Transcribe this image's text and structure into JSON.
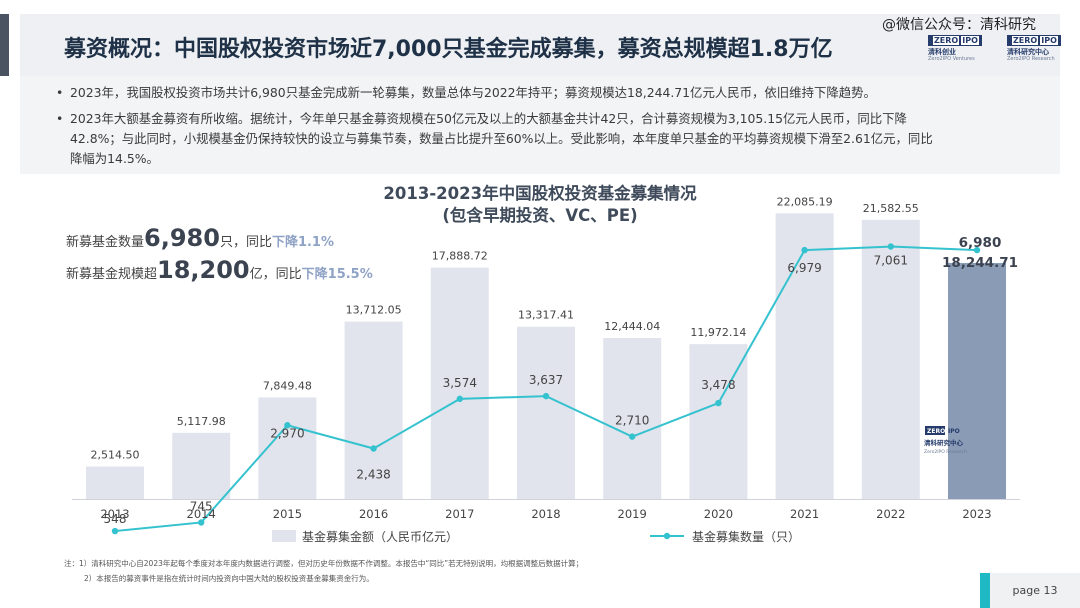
{
  "header": {
    "title": "募资概况：中国股权投资市场近7,000只基金完成募集，募资总规模超1.8万亿",
    "watermark": "@微信公众号：清科研究",
    "logo1": {
      "box": "ZERO",
      "box2": "IPO",
      "cn": "清科创业",
      "en": "Zero2IPO Ventures"
    },
    "logo2": {
      "box": "ZERO",
      "box2": "IPO",
      "cn": "清科研究中心",
      "en": "Zero2IPO Research"
    }
  },
  "bullets": {
    "b1": "2023年，我国股权投资市场共计6,980只基金完成新一轮募集，数量总体与2022年持平；募资规模达18,244.71亿元人民币，依旧维持下降趋势。",
    "b2_l1": "2023年大额基金募资有所收缩。据统计，今年单只基金募资规模在50亿元及以上的大额基金共计42只，合计募资规模为3,105.15亿元人民币，同比下降",
    "b2_l2": "42.8%；与此同时，小规模基金仍保持较快的设立与募集节奏，数量占比提升至60%以上。受此影响，本年度单只基金的平均募资规模下滑至2.61亿元，同比",
    "b2_l3": "降幅为14.5%。"
  },
  "highlight": {
    "count_pre": "新募基金数量",
    "count_num": "6,980",
    "count_unit": "只，同比",
    "count_change": "下降1.1%",
    "size_pre": "新募基金规模超",
    "size_num": "18,200",
    "size_unit": "亿，同比",
    "size_change": "下降15.5%"
  },
  "chart_data": {
    "type": "bar",
    "title": "2013-2023年中国股权投资基金募集情况",
    "subtitle": "(包含早期投资、VC、PE)",
    "categories": [
      "2013",
      "2014",
      "2015",
      "2016",
      "2017",
      "2018",
      "2019",
      "2020",
      "2021",
      "2022",
      "2023"
    ],
    "series": [
      {
        "name": "基金募集金额（人民币亿元）",
        "type": "bar",
        "values": [
          2514.5,
          5117.98,
          7849.48,
          13712.05,
          17888.72,
          13317.41,
          12444.04,
          11972.14,
          22085.19,
          21582.55,
          18244.71
        ],
        "labels": [
          "2,514.50",
          "5,117.98",
          "7,849.48",
          "13,712.05",
          "17,888.72",
          "13,317.41",
          "12,444.04",
          "11,972.14",
          "22,085.19",
          "21,582.55",
          "18,244.71"
        ]
      },
      {
        "name": "基金募集数量（只）",
        "type": "line",
        "values": [
          548,
          745,
          2970,
          2438,
          3574,
          3637,
          2710,
          3478,
          6979,
          7061,
          6980
        ],
        "labels": [
          "548",
          "745",
          "2,970",
          "2,438",
          "3,574",
          "3,637",
          "2,710",
          "3,478",
          "6,979",
          "7,061",
          "6,980"
        ]
      }
    ],
    "bar_ylim": [
      0,
      23500
    ],
    "line_ylim": [
      0,
      7600
    ],
    "legend": "bottom",
    "grid": false,
    "colors": {
      "bar": "#e1e4ec",
      "bar_highlight": "#8a9bb5",
      "line": "#35c2cf",
      "title": "#3f4b5b",
      "accent": "#8fa3c6"
    },
    "watermark_logo": {
      "box": "ZERO",
      "box2": "IPO",
      "cn": "清科研究中心",
      "en": "Zero2IPO Research"
    }
  },
  "footnotes": {
    "f1": "注：1）清科研究中心自2023年起每个季度对本年度内数据进行调整，但对历史年份数据不作调整。本报告中“同比”若无特别说明，均根据调整后数据计算；",
    "f2": "2）本报告的募资事件是指在统计时间内投资向中国大陆的股权投资基金募集资金行为。"
  },
  "page": {
    "label": "page  13"
  }
}
